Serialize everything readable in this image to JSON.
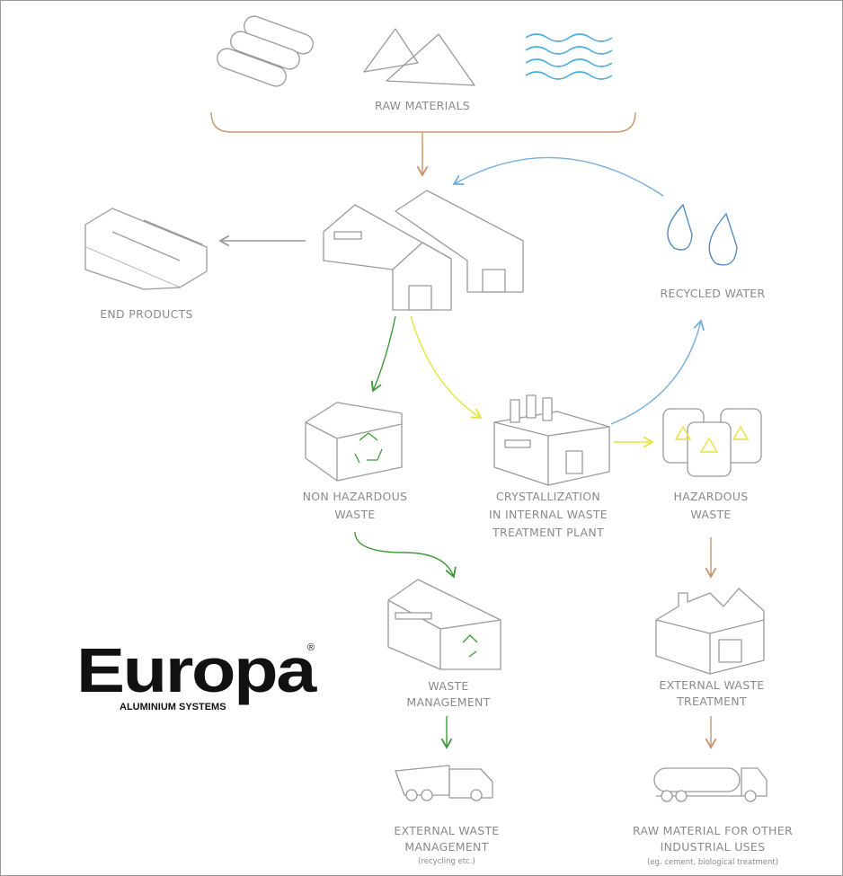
{
  "nodes": [
    {
      "label": [
        "RAW MATERIALS"
      ]
    },
    {
      "label": [
        "END PRODUCTS"
      ]
    },
    {
      "label": [
        "RECYCLED WATER"
      ]
    },
    {
      "label": [
        "NON HAZARDOUS",
        "WASTE"
      ]
    },
    {
      "label": [
        "CRYSTALLIZATION",
        "IN INTERNAL WASTE",
        "TREATMENT PLANT"
      ]
    },
    {
      "label": [
        "HAZARDOUS",
        "WASTE"
      ]
    },
    {
      "label": [
        "WASTE",
        "MANAGEMENT"
      ]
    },
    {
      "label": [
        "EXTERNAL WASTE",
        "TREATMENT"
      ]
    },
    {
      "label": [
        "EXTERNAL WASTE",
        "MANAGEMENT"
      ],
      "note": "(recycling etc.)"
    },
    {
      "label": [
        "RAW MATERIAL FOR OTHER",
        "INDUSTRIAL USES"
      ],
      "note": "(eg. cement, biological treatment)"
    }
  ],
  "logo": {
    "name": "Europa",
    "tagline": "ALUMINIUM SYSTEMS",
    "mark": "®"
  }
}
